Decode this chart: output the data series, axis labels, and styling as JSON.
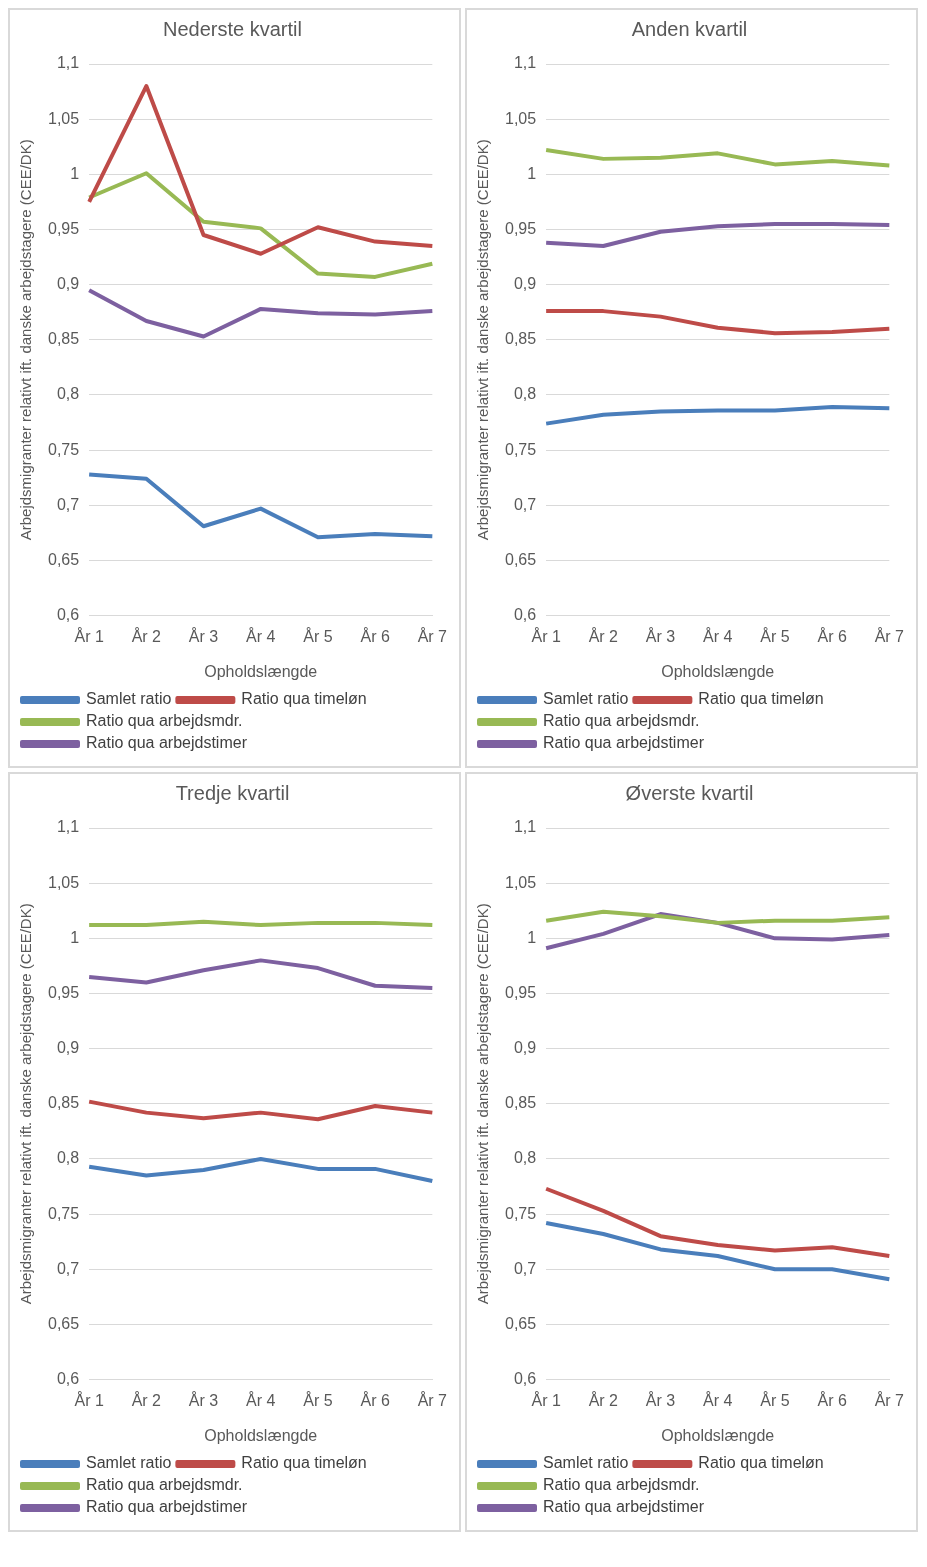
{
  "chart_data": [
    {
      "type": "line",
      "title": "Nederste kvartil",
      "xlabel": "Opholdslængde",
      "ylabel": "Arbejdsmigranter relativt ift. danske arbejdstagere (CEE/DK)",
      "categories": [
        "År 1",
        "År 2",
        "År 3",
        "År 4",
        "År 5",
        "År 6",
        "År 7"
      ],
      "ylim": [
        0.6,
        1.1
      ],
      "yticks": [
        {
          "value": 0.6,
          "label": "0,6"
        },
        {
          "value": 0.65,
          "label": "0,65"
        },
        {
          "value": 0.7,
          "label": "0,7"
        },
        {
          "value": 0.75,
          "label": "0,75"
        },
        {
          "value": 0.8,
          "label": "0,8"
        },
        {
          "value": 0.85,
          "label": "0,85"
        },
        {
          "value": 0.9,
          "label": "0,9"
        },
        {
          "value": 0.95,
          "label": "0,95"
        },
        {
          "value": 1,
          "label": "1"
        },
        {
          "value": 1.05,
          "label": "1,05"
        },
        {
          "value": 1.1,
          "label": "1,1"
        }
      ],
      "grid": "y",
      "legend": "bottom",
      "marker": "none",
      "series": [
        {
          "name": "Samlet ratio",
          "color": "#4a7ebb",
          "values": [
            0.728,
            0.724,
            0.681,
            0.697,
            0.671,
            0.674,
            0.672
          ]
        },
        {
          "name": "Ratio qua timeløn",
          "color": "#be4b48",
          "values": [
            0.975,
            1.08,
            0.945,
            0.928,
            0.952,
            0.939,
            0.935
          ]
        },
        {
          "name": "Ratio qua arbejdsmdr.",
          "color": "#98b954",
          "values": [
            0.979,
            1.001,
            0.957,
            0.951,
            0.91,
            0.907,
            0.919
          ]
        },
        {
          "name": "Ratio qua arbejdstimer",
          "color": "#7d60a0",
          "values": [
            0.895,
            0.867,
            0.853,
            0.878,
            0.874,
            0.873,
            0.876
          ]
        }
      ]
    },
    {
      "type": "line",
      "title": "Anden kvartil",
      "xlabel": "Opholdslængde",
      "ylabel": "Arbejdsmigranter relativt ift. danske arbejdstagere (CEE/DK)",
      "categories": [
        "År 1",
        "År 2",
        "År 3",
        "År 4",
        "År 5",
        "År 6",
        "År 7"
      ],
      "ylim": [
        0.6,
        1.1
      ],
      "yticks": [
        {
          "value": 0.6,
          "label": "0,6"
        },
        {
          "value": 0.65,
          "label": "0,65"
        },
        {
          "value": 0.7,
          "label": "0,7"
        },
        {
          "value": 0.75,
          "label": "0,75"
        },
        {
          "value": 0.8,
          "label": "0,8"
        },
        {
          "value": 0.85,
          "label": "0,85"
        },
        {
          "value": 0.9,
          "label": "0,9"
        },
        {
          "value": 0.95,
          "label": "0,95"
        },
        {
          "value": 1,
          "label": "1"
        },
        {
          "value": 1.05,
          "label": "1,05"
        },
        {
          "value": 1.1,
          "label": "1,1"
        }
      ],
      "grid": "y",
      "legend": "bottom",
      "marker": "none",
      "series": [
        {
          "name": "Samlet ratio",
          "color": "#4a7ebb",
          "values": [
            0.774,
            0.782,
            0.785,
            0.786,
            0.786,
            0.789,
            0.788
          ]
        },
        {
          "name": "Ratio qua timeløn",
          "color": "#be4b48",
          "values": [
            0.876,
            0.876,
            0.871,
            0.861,
            0.856,
            0.857,
            0.86
          ]
        },
        {
          "name": "Ratio qua arbejdsmdr.",
          "color": "#98b954",
          "values": [
            1.022,
            1.014,
            1.015,
            1.019,
            1.009,
            1.012,
            1.008
          ]
        },
        {
          "name": "Ratio qua arbejdstimer",
          "color": "#7d60a0",
          "values": [
            0.938,
            0.935,
            0.948,
            0.953,
            0.955,
            0.955,
            0.954
          ]
        }
      ]
    },
    {
      "type": "line",
      "title": "Tredje kvartil",
      "xlabel": "Opholdslængde",
      "ylabel": "Arbejdsmigranter relativt ift. danske arbejdstagere (CEE/DK)",
      "categories": [
        "År 1",
        "År 2",
        "År 3",
        "År 4",
        "År 5",
        "År 6",
        "År 7"
      ],
      "ylim": [
        0.6,
        1.1
      ],
      "yticks": [
        {
          "value": 0.6,
          "label": "0,6"
        },
        {
          "value": 0.65,
          "label": "0,65"
        },
        {
          "value": 0.7,
          "label": "0,7"
        },
        {
          "value": 0.75,
          "label": "0,75"
        },
        {
          "value": 0.8,
          "label": "0,8"
        },
        {
          "value": 0.85,
          "label": "0,85"
        },
        {
          "value": 0.9,
          "label": "0,9"
        },
        {
          "value": 0.95,
          "label": "0,95"
        },
        {
          "value": 1,
          "label": "1"
        },
        {
          "value": 1.05,
          "label": "1,05"
        },
        {
          "value": 1.1,
          "label": "1,1"
        }
      ],
      "grid": "y",
      "legend": "bottom",
      "marker": "none",
      "series": [
        {
          "name": "Samlet ratio",
          "color": "#4a7ebb",
          "values": [
            0.793,
            0.785,
            0.79,
            0.8,
            0.791,
            0.791,
            0.78
          ]
        },
        {
          "name": "Ratio qua timeløn",
          "color": "#be4b48",
          "values": [
            0.852,
            0.842,
            0.837,
            0.842,
            0.836,
            0.848,
            0.842
          ]
        },
        {
          "name": "Ratio qua arbejdsmdr.",
          "color": "#98b954",
          "values": [
            1.012,
            1.012,
            1.015,
            1.012,
            1.014,
            1.014,
            1.012
          ]
        },
        {
          "name": "Ratio qua arbejdstimer",
          "color": "#7d60a0",
          "values": [
            0.965,
            0.96,
            0.971,
            0.98,
            0.973,
            0.957,
            0.955
          ]
        }
      ]
    },
    {
      "type": "line",
      "title": "Øverste kvartil",
      "xlabel": "Opholdslængde",
      "ylabel": "Arbejdsmigranter relativt ift. danske arbejdstagere (CEE/DK)",
      "categories": [
        "År 1",
        "År 2",
        "År 3",
        "År 4",
        "År 5",
        "År 6",
        "År 7"
      ],
      "ylim": [
        0.6,
        1.1
      ],
      "yticks": [
        {
          "value": 0.6,
          "label": "0,6"
        },
        {
          "value": 0.65,
          "label": "0,65"
        },
        {
          "value": 0.7,
          "label": "0,7"
        },
        {
          "value": 0.75,
          "label": "0,75"
        },
        {
          "value": 0.8,
          "label": "0,8"
        },
        {
          "value": 0.85,
          "label": "0,85"
        },
        {
          "value": 0.9,
          "label": "0,9"
        },
        {
          "value": 0.95,
          "label": "0,95"
        },
        {
          "value": 1,
          "label": "1"
        },
        {
          "value": 1.05,
          "label": "1,05"
        },
        {
          "value": 1.1,
          "label": "1,1"
        }
      ],
      "grid": "y",
      "legend": "bottom",
      "marker": "none",
      "series": [
        {
          "name": "Samlet ratio",
          "color": "#4a7ebb",
          "values": [
            0.742,
            0.732,
            0.718,
            0.712,
            0.7,
            0.7,
            0.691
          ]
        },
        {
          "name": "Ratio qua timeløn",
          "color": "#be4b48",
          "values": [
            0.773,
            0.753,
            0.73,
            0.722,
            0.717,
            0.72,
            0.712
          ]
        },
        {
          "name": "Ratio qua arbejdsmdr.",
          "color": "#98b954",
          "values": [
            1.016,
            1.024,
            1.02,
            1.014,
            1.016,
            1.016,
            1.019
          ]
        },
        {
          "name": "Ratio qua arbejdstimer",
          "color": "#7d60a0",
          "values": [
            0.991,
            1.004,
            1.022,
            1.014,
            1,
            0.999,
            1.003
          ]
        }
      ]
    }
  ]
}
